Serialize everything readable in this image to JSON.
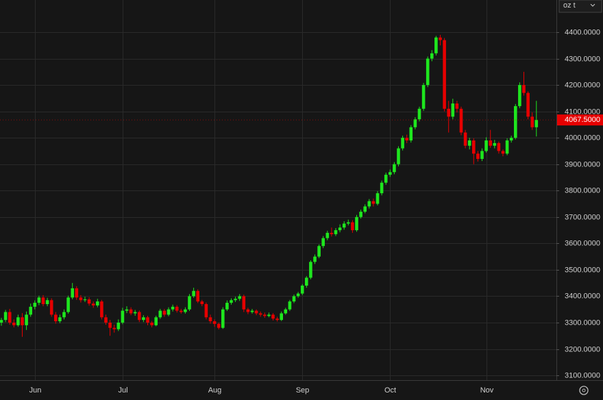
{
  "chart_data": {
    "type": "candlestick",
    "categories": [
      null,
      null,
      null,
      null,
      null,
      null,
      null,
      null,
      "Jun",
      null,
      null,
      null,
      null,
      null,
      null,
      null,
      null,
      null,
      null,
      null,
      null,
      null,
      null,
      null,
      null,
      null,
      null,
      null,
      null,
      "Jul",
      null,
      null,
      null,
      null,
      null,
      null,
      null,
      null,
      null,
      null,
      null,
      null,
      null,
      null,
      null,
      null,
      null,
      null,
      null,
      null,
      null,
      "Aug",
      null,
      null,
      null,
      null,
      null,
      null,
      null,
      null,
      null,
      null,
      null,
      null,
      null,
      null,
      null,
      null,
      null,
      null,
      null,
      null,
      "Sep",
      null,
      null,
      null,
      null,
      null,
      null,
      null,
      null,
      null,
      null,
      null,
      null,
      null,
      null,
      null,
      null,
      null,
      null,
      null,
      null,
      "Oct",
      null,
      null,
      null,
      null,
      null,
      null,
      null,
      null,
      null,
      null,
      null,
      null,
      null,
      null,
      null,
      null,
      null,
      null,
      null,
      null,
      null,
      null,
      "Nov",
      null,
      null,
      null,
      null,
      null,
      null,
      null,
      null,
      null,
      null,
      null,
      null
    ],
    "ohlc": [
      [
        3300,
        3318,
        3288,
        3310
      ],
      [
        3310,
        3348,
        3302,
        3340
      ],
      [
        3340,
        3352,
        3292,
        3300
      ],
      [
        3300,
        3312,
        3282,
        3290
      ],
      [
        3290,
        3330,
        3284,
        3320
      ],
      [
        3320,
        3336,
        3246,
        3290
      ],
      [
        3290,
        3342,
        3272,
        3330
      ],
      [
        3330,
        3372,
        3322,
        3360
      ],
      [
        3360,
        3384,
        3350,
        3375
      ],
      [
        3375,
        3402,
        3366,
        3395
      ],
      [
        3395,
        3404,
        3362,
        3370
      ],
      [
        3370,
        3394,
        3362,
        3385
      ],
      [
        3385,
        3392,
        3322,
        3330
      ],
      [
        3330,
        3340,
        3296,
        3305
      ],
      [
        3305,
        3330,
        3298,
        3320
      ],
      [
        3320,
        3350,
        3312,
        3340
      ],
      [
        3340,
        3402,
        3334,
        3395
      ],
      [
        3395,
        3450,
        3388,
        3430
      ],
      [
        3430,
        3438,
        3386,
        3395
      ],
      [
        3395,
        3404,
        3376,
        3385
      ],
      [
        3385,
        3398,
        3378,
        3388
      ],
      [
        3388,
        3396,
        3364,
        3372
      ],
      [
        3372,
        3380,
        3356,
        3365
      ],
      [
        3365,
        3390,
        3358,
        3380
      ],
      [
        3380,
        3386,
        3312,
        3320
      ],
      [
        3320,
        3330,
        3292,
        3300
      ],
      [
        3300,
        3310,
        3250,
        3280
      ],
      [
        3280,
        3292,
        3262,
        3275
      ],
      [
        3275,
        3312,
        3268,
        3300
      ],
      [
        3300,
        3356,
        3294,
        3345
      ],
      [
        3345,
        3362,
        3336,
        3350
      ],
      [
        3350,
        3358,
        3328,
        3335
      ],
      [
        3335,
        3348,
        3326,
        3340
      ],
      [
        3340,
        3346,
        3302,
        3310
      ],
      [
        3310,
        3328,
        3302,
        3320
      ],
      [
        3320,
        3326,
        3290,
        3300
      ],
      [
        3300,
        3306,
        3282,
        3290
      ],
      [
        3290,
        3326,
        3286,
        3320
      ],
      [
        3320,
        3352,
        3314,
        3345
      ],
      [
        3345,
        3352,
        3322,
        3330
      ],
      [
        3330,
        3358,
        3324,
        3350
      ],
      [
        3350,
        3368,
        3342,
        3360
      ],
      [
        3360,
        3366,
        3338,
        3345
      ],
      [
        3345,
        3352,
        3334,
        3340
      ],
      [
        3340,
        3358,
        3334,
        3350
      ],
      [
        3350,
        3408,
        3344,
        3400
      ],
      [
        3400,
        3432,
        3394,
        3420
      ],
      [
        3420,
        3426,
        3374,
        3380
      ],
      [
        3380,
        3386,
        3362,
        3370
      ],
      [
        3370,
        3376,
        3312,
        3320
      ],
      [
        3320,
        3330,
        3296,
        3305
      ],
      [
        3305,
        3312,
        3284,
        3295
      ],
      [
        3295,
        3300,
        3274,
        3280
      ],
      [
        3280,
        3358,
        3276,
        3350
      ],
      [
        3350,
        3384,
        3344,
        3375
      ],
      [
        3375,
        3392,
        3368,
        3385
      ],
      [
        3385,
        3398,
        3378,
        3390
      ],
      [
        3390,
        3408,
        3382,
        3400
      ],
      [
        3400,
        3406,
        3340,
        3350
      ],
      [
        3350,
        3356,
        3332,
        3340
      ],
      [
        3340,
        3352,
        3334,
        3345
      ],
      [
        3345,
        3350,
        3328,
        3335
      ],
      [
        3335,
        3342,
        3322,
        3330
      ],
      [
        3330,
        3338,
        3318,
        3325
      ],
      [
        3325,
        3338,
        3320,
        3330
      ],
      [
        3330,
        3336,
        3308,
        3315
      ],
      [
        3315,
        3322,
        3304,
        3310
      ],
      [
        3310,
        3342,
        3306,
        3335
      ],
      [
        3335,
        3356,
        3330,
        3350
      ],
      [
        3350,
        3386,
        3344,
        3380
      ],
      [
        3380,
        3406,
        3374,
        3400
      ],
      [
        3400,
        3416,
        3394,
        3410
      ],
      [
        3410,
        3446,
        3404,
        3440
      ],
      [
        3440,
        3476,
        3432,
        3470
      ],
      [
        3470,
        3536,
        3464,
        3530
      ],
      [
        3530,
        3558,
        3522,
        3550
      ],
      [
        3550,
        3596,
        3544,
        3590
      ],
      [
        3590,
        3628,
        3582,
        3620
      ],
      [
        3620,
        3648,
        3612,
        3640
      ],
      [
        3640,
        3660,
        3626,
        3635
      ],
      [
        3635,
        3658,
        3628,
        3650
      ],
      [
        3650,
        3672,
        3642,
        3660
      ],
      [
        3660,
        3684,
        3652,
        3675
      ],
      [
        3675,
        3690,
        3668,
        3680
      ],
      [
        3680,
        3688,
        3640,
        3650
      ],
      [
        3650,
        3708,
        3644,
        3700
      ],
      [
        3700,
        3728,
        3694,
        3720
      ],
      [
        3720,
        3748,
        3714,
        3740
      ],
      [
        3740,
        3768,
        3732,
        3760
      ],
      [
        3760,
        3770,
        3740,
        3750
      ],
      [
        3750,
        3798,
        3744,
        3790
      ],
      [
        3790,
        3838,
        3782,
        3830
      ],
      [
        3830,
        3868,
        3822,
        3860
      ],
      [
        3860,
        3880,
        3852,
        3870
      ],
      [
        3870,
        3908,
        3862,
        3900
      ],
      [
        3900,
        3968,
        3892,
        3960
      ],
      [
        3960,
        4008,
        3952,
        4000
      ],
      [
        4000,
        4012,
        3980,
        3990
      ],
      [
        3990,
        4048,
        3982,
        4040
      ],
      [
        4040,
        4078,
        4032,
        4070
      ],
      [
        4070,
        4118,
        4062,
        4110
      ],
      [
        4110,
        4208,
        4102,
        4200
      ],
      [
        4200,
        4308,
        4192,
        4300
      ],
      [
        4300,
        4332,
        4290,
        4320
      ],
      [
        4320,
        4386,
        4312,
        4380
      ],
      [
        4380,
        4390,
        4350,
        4370
      ],
      [
        4370,
        4378,
        4100,
        4110
      ],
      [
        4110,
        4140,
        4020,
        4080
      ],
      [
        4080,
        4148,
        4070,
        4130
      ],
      [
        4130,
        4140,
        4096,
        4110
      ],
      [
        4110,
        4118,
        4010,
        4020
      ],
      [
        4020,
        4030,
        3960,
        3970
      ],
      [
        3970,
        4000,
        3956,
        3990
      ],
      [
        3990,
        3998,
        3900,
        3940
      ],
      [
        3940,
        3950,
        3910,
        3920
      ],
      [
        3920,
        3960,
        3912,
        3950
      ],
      [
        3950,
        4002,
        3944,
        3990
      ],
      [
        3990,
        4030,
        3962,
        3970
      ],
      [
        3970,
        3992,
        3960,
        3980
      ],
      [
        3980,
        3986,
        3940,
        3950
      ],
      [
        3950,
        3956,
        3930,
        3940
      ],
      [
        3940,
        3998,
        3934,
        3990
      ],
      [
        3990,
        4008,
        3982,
        4000
      ],
      [
        4000,
        4128,
        3994,
        4120
      ],
      [
        4120,
        4210,
        4112,
        4200
      ],
      [
        4200,
        4250,
        4160,
        4170
      ],
      [
        4170,
        4176,
        4070,
        4080
      ],
      [
        4080,
        4096,
        4030,
        4040
      ],
      [
        4040,
        4140,
        4005,
        4067.5
      ]
    ],
    "up_color": "#1ee61e",
    "down_color": "#e60000",
    "ylim": [
      3082,
      4522
    ],
    "yticks": [
      {
        "value": 3100,
        "label": "3100.0000"
      },
      {
        "value": 3200,
        "label": "3200.0000"
      },
      {
        "value": 3300,
        "label": "3300.0000"
      },
      {
        "value": 3400,
        "label": "3400.0000"
      },
      {
        "value": 3500,
        "label": "3500.0000"
      },
      {
        "value": 3600,
        "label": "3600.0000"
      },
      {
        "value": 3700,
        "label": "3700.0000"
      },
      {
        "value": 3800,
        "label": "3800.0000"
      },
      {
        "value": 3900,
        "label": "3900.0000"
      },
      {
        "value": 4000,
        "label": "4000.0000"
      },
      {
        "value": 4100,
        "label": "4100.0000"
      },
      {
        "value": 4200,
        "label": "4200.0000"
      },
      {
        "value": 4300,
        "label": "4300.0000"
      },
      {
        "value": 4400,
        "label": "4400.0000"
      }
    ],
    "grid": true,
    "last_price": {
      "value": 4067.5,
      "label": "4067.5000"
    },
    "unit_selector": "oz t"
  }
}
